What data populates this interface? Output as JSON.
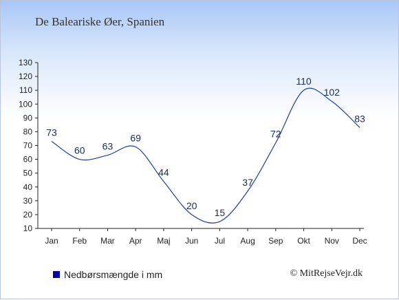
{
  "chart_data": {
    "type": "line",
    "title": "De Baleariske Øer, Spanien",
    "categories": [
      "Jan",
      "Feb",
      "Mar",
      "Apr",
      "Maj",
      "Jun",
      "Jul",
      "Aug",
      "Sep",
      "Okt",
      "Nov",
      "Dec"
    ],
    "series": [
      {
        "name": "Nedbørsmængde i mm",
        "values": [
          73,
          60,
          63,
          69,
          44,
          20,
          15,
          37,
          72,
          110,
          102,
          83
        ]
      }
    ],
    "ylim": [
      10,
      130
    ],
    "yticks": [
      10,
      20,
      30,
      40,
      50,
      60,
      70,
      80,
      90,
      100,
      110,
      120,
      130
    ],
    "xlabel": "",
    "ylabel": "",
    "grid": false,
    "legend": "bottom-left",
    "colors": {
      "line": "#1f3a9c",
      "legend_marker": "#0000a5",
      "labels": "#1a2a5a"
    }
  },
  "credit": "© MitRejseVejr.dk"
}
